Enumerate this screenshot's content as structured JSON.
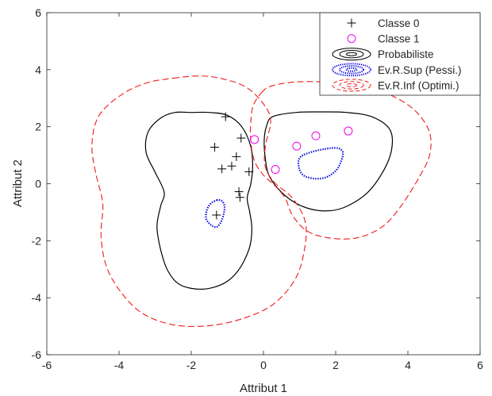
{
  "chart_data": {
    "type": "scatter",
    "title": "",
    "xlabel": "Attribut 1",
    "ylabel": "Attribut 2",
    "xlim": [
      -6,
      6
    ],
    "ylim": [
      -6,
      6
    ],
    "x_ticks": [
      -6,
      -4,
      -2,
      0,
      2,
      4,
      6
    ],
    "y_ticks": [
      -6,
      -4,
      -2,
      0,
      2,
      4,
      6
    ],
    "grid": false,
    "box": true,
    "legend_position": "top-right",
    "series": [
      {
        "name": "Classe 0",
        "kind": "points",
        "marker": "plus",
        "color": "#000000",
        "points": [
          [
            -1.05,
            2.35
          ],
          [
            -1.35,
            1.28
          ],
          [
            -0.62,
            1.6
          ],
          [
            -0.75,
            0.95
          ],
          [
            -0.88,
            0.62
          ],
          [
            -1.15,
            0.52
          ],
          [
            -0.4,
            0.42
          ],
          [
            -0.68,
            -0.28
          ],
          [
            -0.65,
            -0.48
          ],
          [
            -1.3,
            -1.1
          ]
        ]
      },
      {
        "name": "Classe 1",
        "kind": "points",
        "marker": "circle",
        "color": "#ee00ee",
        "points": [
          [
            -0.25,
            1.55
          ],
          [
            0.92,
            1.32
          ],
          [
            1.45,
            1.68
          ],
          [
            2.35,
            1.85
          ],
          [
            0.33,
            0.5
          ]
        ]
      },
      {
        "name": "Probabiliste",
        "kind": "contour",
        "color": "#000000",
        "dash": "solid",
        "curves": [
          [
            [
              -2.0,
              2.5
            ],
            [
              -1.5,
              2.5
            ],
            [
              -1.0,
              2.4
            ],
            [
              -0.6,
              2.0
            ],
            [
              -0.35,
              1.3
            ],
            [
              -0.3,
              0.6
            ],
            [
              -0.35,
              0.0
            ],
            [
              -0.45,
              -0.5
            ],
            [
              -0.38,
              -1.0
            ],
            [
              -0.32,
              -1.6
            ],
            [
              -0.4,
              -2.3
            ],
            [
              -0.7,
              -3.05
            ],
            [
              -1.1,
              -3.5
            ],
            [
              -1.7,
              -3.7
            ],
            [
              -2.3,
              -3.55
            ],
            [
              -2.65,
              -3.05
            ],
            [
              -2.85,
              -2.3
            ],
            [
              -2.95,
              -1.5
            ],
            [
              -2.85,
              -0.8
            ],
            [
              -2.75,
              -0.3
            ],
            [
              -3.0,
              0.4
            ],
            [
              -3.25,
              1.1
            ],
            [
              -3.2,
              1.8
            ],
            [
              -2.85,
              2.3
            ],
            [
              -2.45,
              2.5
            ],
            [
              -2.0,
              2.5
            ]
          ],
          [
            [
              0.25,
              2.35
            ],
            [
              0.9,
              2.5
            ],
            [
              1.6,
              2.52
            ],
            [
              2.3,
              2.5
            ],
            [
              3.0,
              2.35
            ],
            [
              3.5,
              1.9
            ],
            [
              3.55,
              1.2
            ],
            [
              3.3,
              0.4
            ],
            [
              2.85,
              -0.35
            ],
            [
              2.2,
              -0.85
            ],
            [
              1.6,
              -0.95
            ],
            [
              1.0,
              -0.75
            ],
            [
              0.5,
              -0.3
            ],
            [
              0.15,
              0.3
            ],
            [
              0.05,
              0.9
            ],
            [
              0.02,
              1.5
            ],
            [
              0.08,
              2.0
            ],
            [
              0.25,
              2.35
            ]
          ]
        ]
      },
      {
        "name": "Ev.R.Sup (Pessi.)",
        "kind": "contour",
        "color": "#0000dd",
        "dash": "dotted",
        "curves": [
          [
            [
              -1.3,
              -0.58
            ],
            [
              -1.16,
              -0.6
            ],
            [
              -1.08,
              -0.78
            ],
            [
              -1.1,
              -1.05
            ],
            [
              -1.18,
              -1.35
            ],
            [
              -1.3,
              -1.52
            ],
            [
              -1.45,
              -1.45
            ],
            [
              -1.58,
              -1.25
            ],
            [
              -1.58,
              -0.98
            ],
            [
              -1.48,
              -0.72
            ],
            [
              -1.3,
              -0.58
            ]
          ],
          [
            [
              1.25,
              1.08
            ],
            [
              1.7,
              1.22
            ],
            [
              2.05,
              1.25
            ],
            [
              2.2,
              1.1
            ],
            [
              2.15,
              0.78
            ],
            [
              2.0,
              0.45
            ],
            [
              1.72,
              0.22
            ],
            [
              1.4,
              0.18
            ],
            [
              1.1,
              0.3
            ],
            [
              0.98,
              0.58
            ],
            [
              1.0,
              0.9
            ],
            [
              1.25,
              1.08
            ]
          ]
        ]
      },
      {
        "name": "Ev.R.Inf (Optimi.)",
        "kind": "contour",
        "color": "#ee1c1c",
        "dash": "dashed",
        "curves": [
          [
            [
              -2.5,
              3.7
            ],
            [
              -1.8,
              3.78
            ],
            [
              -1.2,
              3.7
            ],
            [
              -0.5,
              3.4
            ],
            [
              0.0,
              2.8
            ],
            [
              0.2,
              2.2
            ],
            [
              0.05,
              1.3
            ],
            [
              0.05,
              0.6
            ],
            [
              0.3,
              0.05
            ],
            [
              0.8,
              -0.5
            ],
            [
              1.15,
              -1.3
            ],
            [
              1.15,
              -2.2
            ],
            [
              0.9,
              -3.3
            ],
            [
              0.3,
              -4.2
            ],
            [
              -0.5,
              -4.7
            ],
            [
              -1.5,
              -4.98
            ],
            [
              -2.5,
              -4.95
            ],
            [
              -3.35,
              -4.55
            ],
            [
              -3.95,
              -3.8
            ],
            [
              -4.35,
              -2.9
            ],
            [
              -4.5,
              -1.8
            ],
            [
              -4.45,
              -0.7
            ],
            [
              -4.65,
              0.4
            ],
            [
              -4.75,
              1.4
            ],
            [
              -4.55,
              2.4
            ],
            [
              -3.9,
              3.15
            ],
            [
              -3.2,
              3.55
            ],
            [
              -2.5,
              3.7
            ]
          ],
          [
            [
              -0.05,
              3.2
            ],
            [
              0.2,
              3.42
            ],
            [
              0.8,
              3.56
            ],
            [
              1.5,
              3.58
            ],
            [
              2.2,
              3.5
            ],
            [
              3.0,
              3.35
            ],
            [
              3.7,
              3.0
            ],
            [
              4.25,
              2.5
            ],
            [
              4.6,
              1.8
            ],
            [
              4.6,
              1.0
            ],
            [
              4.3,
              0.2
            ],
            [
              3.8,
              -0.8
            ],
            [
              3.3,
              -1.5
            ],
            [
              2.6,
              -1.9
            ],
            [
              1.8,
              -1.9
            ],
            [
              1.2,
              -1.65
            ],
            [
              0.8,
              -1.1
            ],
            [
              0.6,
              -0.5
            ],
            [
              0.3,
              -0.05
            ],
            [
              0.0,
              0.3
            ],
            [
              -0.25,
              0.8
            ],
            [
              -0.35,
              1.5
            ],
            [
              -0.35,
              2.2
            ],
            [
              -0.28,
              2.75
            ],
            [
              -0.05,
              3.2
            ]
          ]
        ]
      }
    ]
  }
}
